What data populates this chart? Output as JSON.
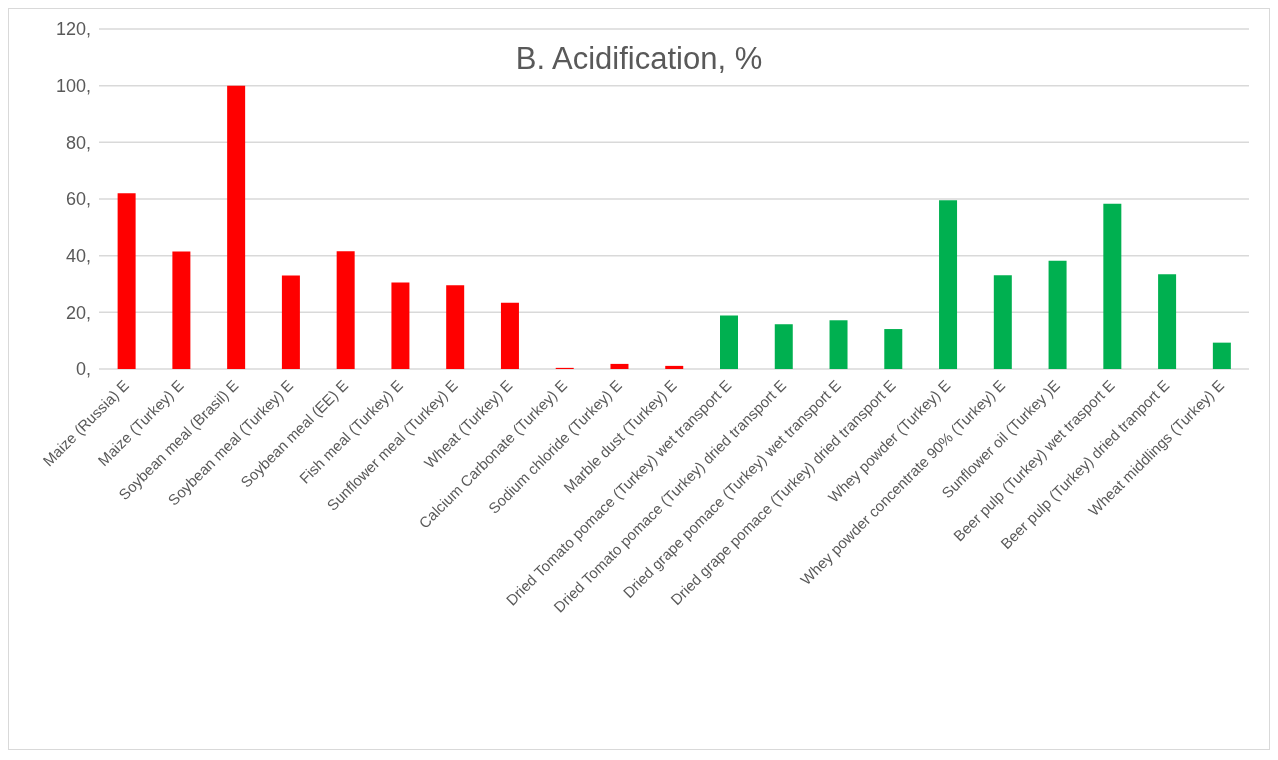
{
  "chart_data": {
    "type": "bar",
    "title": "B. Acidification, %",
    "categories": [
      "Maize (Russia) E",
      "Maize (Turkey) E",
      "Soybean meal (Brasil) E",
      "Soybean meal (Turkey) E",
      "Soybean meal (EE) E",
      "Fish meal (Turkey) E",
      "Sunflower meal (Turkey) E",
      "Wheat (Turkey) E",
      "Calcium Carbonate (Turkey) E",
      "Sodium chloride (Turkey) E",
      "Marble dust (Turkey) E",
      "Dried Tomato pomace (Turkey) wet transport E",
      "Dried Tomato pomace (Turkey) dried transport E",
      "Dried grape pomace (Turkey) wet transport E",
      "Dried grape pomace (Turkey) dried transport E",
      "Whey powder (Turkey) E",
      "Whey powder concentrate 90% (Turkey) E",
      "Sunflower oil (Turkey )E",
      "Beer pulp (Turkey) wet trasport E",
      "Beer pulp (Turkey) dried tranport E",
      "Wheat middlings (Turkey) E"
    ],
    "values": [
      62,
      41.5,
      100,
      33,
      41.6,
      30.5,
      29.6,
      23.4,
      0.4,
      1.8,
      1.1,
      18.9,
      15.8,
      17.2,
      14.1,
      59.6,
      33.1,
      38.2,
      58.3,
      33.4,
      9.3
    ],
    "colors": [
      "#ff0000",
      "#ff0000",
      "#ff0000",
      "#ff0000",
      "#ff0000",
      "#ff0000",
      "#ff0000",
      "#ff0000",
      "#ff0000",
      "#ff0000",
      "#ff0000",
      "#00b050",
      "#00b050",
      "#00b050",
      "#00b050",
      "#00b050",
      "#00b050",
      "#00b050",
      "#00b050",
      "#00b050",
      "#00b050"
    ],
    "ylim": [
      0,
      120
    ],
    "yticks": [
      {
        "value": 0,
        "label": "0,"
      },
      {
        "value": 20,
        "label": "20,"
      },
      {
        "value": 40,
        "label": "40,"
      },
      {
        "value": 60,
        "label": "60,"
      },
      {
        "value": 80,
        "label": "80,"
      },
      {
        "value": 100,
        "label": "100,"
      },
      {
        "value": 120,
        "label": "120,"
      }
    ],
    "grid": "y"
  }
}
